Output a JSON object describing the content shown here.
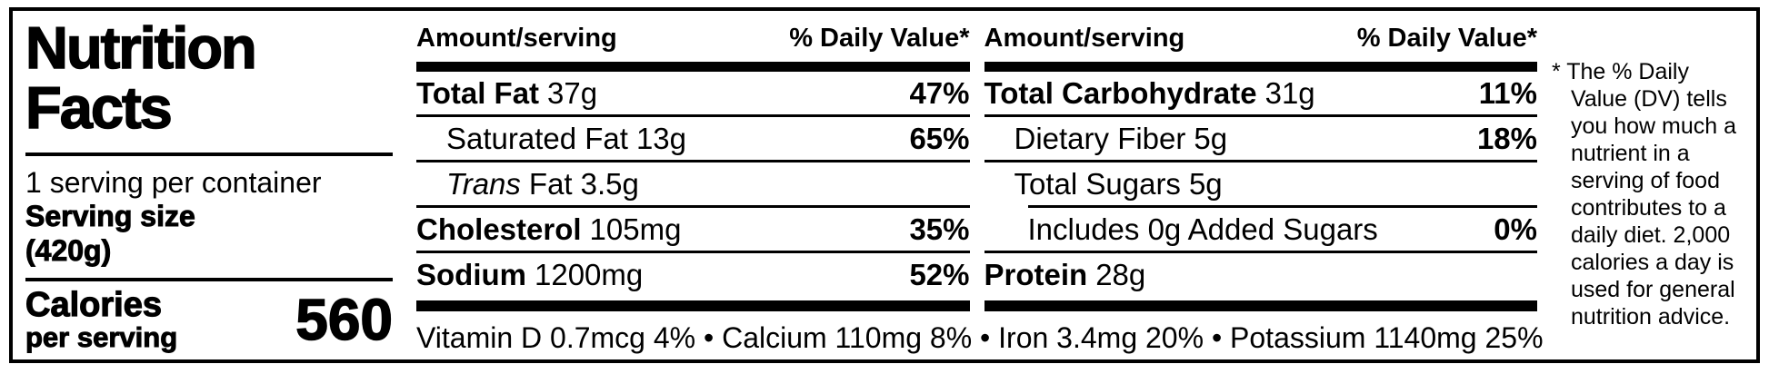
{
  "colors": {
    "ink": "#000000",
    "background": "#ffffff"
  },
  "left_panel": {
    "title": "Nutrition Facts",
    "servings_per_container": "1 serving per container",
    "serving_size_label": "Serving size",
    "serving_size_value": "(420g)",
    "calories_label": "Calories",
    "calories_sublabel": "per serving",
    "calories_value": "560"
  },
  "columns": [
    {
      "header": {
        "amount": "Amount/serving",
        "daily_value": "% Daily Value*"
      },
      "rows": [
        {
          "name": "Total Fat",
          "amount": "37g",
          "dv": "47%"
        },
        {
          "name": "Saturated Fat",
          "amount": "13g",
          "dv": "65%"
        },
        {
          "name_italic": "Trans",
          "name": "Fat",
          "amount": "3.5g",
          "dv": ""
        },
        {
          "name": "Cholesterol",
          "amount": "105mg",
          "dv": "35%"
        },
        {
          "name": "Sodium",
          "amount": "1200mg",
          "dv": "52%"
        }
      ]
    },
    {
      "header": {
        "amount": "Amount/serving",
        "daily_value": "% Daily Value*"
      },
      "rows": [
        {
          "name": "Total Carbohydrate",
          "amount": "31g",
          "dv": "11%"
        },
        {
          "name": "Dietary Fiber",
          "amount": "5g",
          "dv": "18%"
        },
        {
          "name": "Total Sugars",
          "amount": "5g",
          "dv": ""
        },
        {
          "name": "Includes 0g Added Sugars",
          "amount": "",
          "dv": "0%"
        },
        {
          "name": "Protein",
          "amount": "28g",
          "dv": ""
        }
      ]
    }
  ],
  "micronutrients_line": "Vitamin D 0.7mcg 4% • Calcium 110mg 8% • Iron 3.4mg 20% • Potassium 1140mg 25%",
  "footnote": "* The % Daily Value (DV) tells you how much a nutrient in a serving of food contributes to a daily diet. 2,000 calories a day is used for general nutrition advice."
}
